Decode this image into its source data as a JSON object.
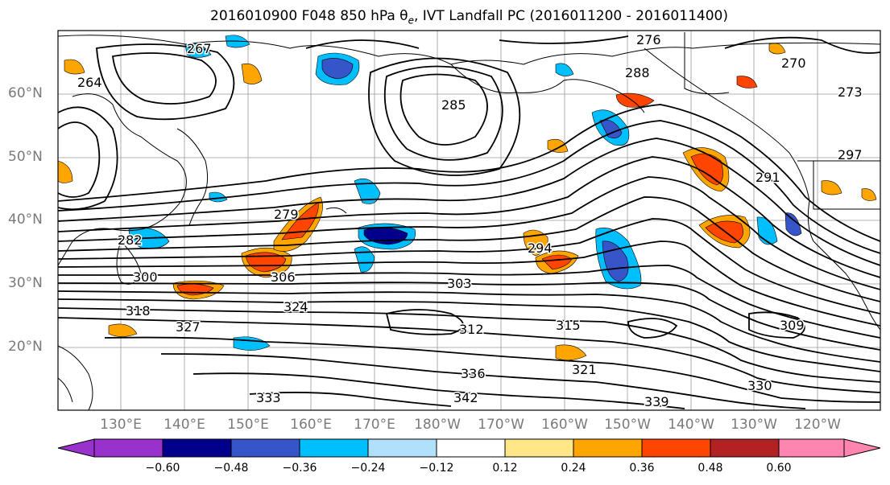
{
  "title": {
    "prefix": "2016010900 F048 850 hPa ",
    "theta": "θ",
    "theta_sub": "e",
    "suffix": ", IVT Landfall PC (2016011200 - 2016011400)"
  },
  "lat_labels": [
    "60°N",
    "50°N",
    "40°N",
    "30°N",
    "20°N"
  ],
  "lon_labels": [
    "130°E",
    "140°E",
    "150°E",
    "160°E",
    "170°E",
    "180°W",
    "170°W",
    "160°W",
    "150°W",
    "140°W",
    "130°W",
    "120°W"
  ],
  "colorbar": {
    "ticks": [
      "−0.60",
      "−0.48",
      "−0.36",
      "−0.24",
      "−0.12",
      "0.12",
      "0.24",
      "0.36",
      "0.48",
      "0.60"
    ],
    "colors": [
      "#9932cc",
      "#00008b",
      "#3655c9",
      "#00bfff",
      "#b0e0fa",
      "#ffffff",
      "#ffe787",
      "#ffa500",
      "#ff4500",
      "#b22222",
      "#ff85b0"
    ]
  },
  "contour_labels": [
    "264",
    "267",
    "270",
    "273",
    "276",
    "279",
    "282",
    "285",
    "288",
    "291",
    "294",
    "297",
    "300",
    "303",
    "306",
    "309",
    "312",
    "315",
    "318",
    "321",
    "324",
    "327",
    "330",
    "333",
    "336",
    "339",
    "342"
  ],
  "icons": {
    "land": "coastline-outline",
    "grid": "lat-lon-gridlines"
  }
}
